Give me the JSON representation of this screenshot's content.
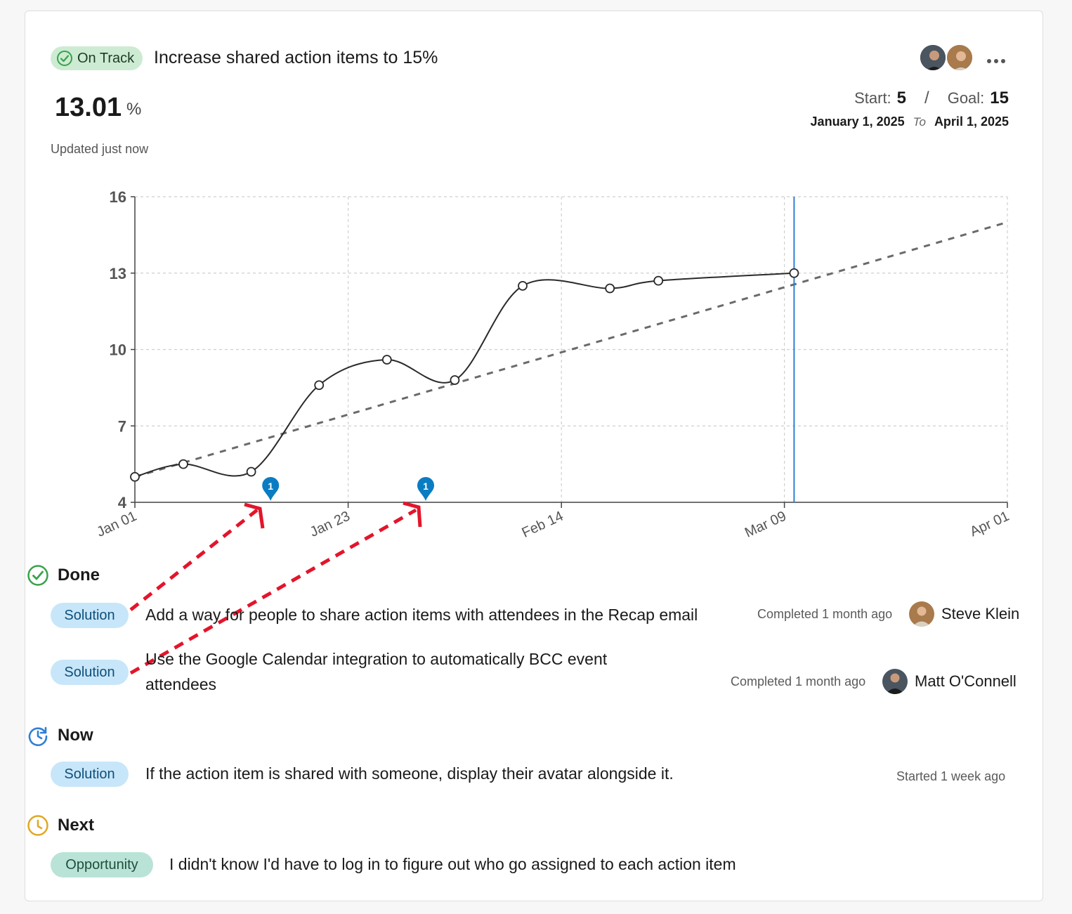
{
  "header": {
    "status_label": "On Track",
    "status_icon": "check-circle-icon",
    "title": "Increase shared action items to 15%",
    "value": "13.01",
    "unit": "%",
    "updated": "Updated just now",
    "start_label": "Start:",
    "start_value": "5",
    "separator": "/",
    "goal_label": "Goal:",
    "goal_value": "15",
    "start_date": "January 1, 2025",
    "to_label": "To",
    "end_date": "April 1, 2025",
    "more_icon": "ellipsis-icon"
  },
  "chart_data": {
    "type": "line",
    "ylim": [
      4,
      16
    ],
    "yticks": [
      "4",
      "7",
      "10",
      "13",
      "16"
    ],
    "xticks": [
      "Jan 01",
      "Jan 23",
      "Feb 14",
      "Mar 09",
      "Apr 01"
    ],
    "grid": true,
    "series": [
      {
        "style": "solid",
        "points": [
          {
            "x": "2025-01-01",
            "y": 5.0
          },
          {
            "x": "2025-01-06",
            "y": 5.5
          },
          {
            "x": "2025-01-13",
            "y": 5.2
          },
          {
            "x": "2025-01-20",
            "y": 8.6
          },
          {
            "x": "2025-01-27",
            "y": 9.6
          },
          {
            "x": "2025-02-03",
            "y": 8.8
          },
          {
            "x": "2025-02-10",
            "y": 12.5
          },
          {
            "x": "2025-02-19",
            "y": 12.4
          },
          {
            "x": "2025-02-24",
            "y": 12.7
          },
          {
            "x": "2025-03-10",
            "y": 13.0
          }
        ]
      },
      {
        "style": "dashed",
        "points": [
          {
            "x": "2025-01-01",
            "y": 5.0
          },
          {
            "x": "2025-04-01",
            "y": 15.0
          }
        ]
      }
    ],
    "today_marker": {
      "x": "2025-03-10",
      "color": "#2f7fd6"
    },
    "pins": [
      {
        "x": "2025-01-15",
        "label": "1"
      },
      {
        "x": "2025-01-31",
        "label": "1"
      }
    ]
  },
  "sections": {
    "done": {
      "label": "Done",
      "icon": "check-circle-icon",
      "items": [
        {
          "tag": "Solution",
          "text": "Add a way for people to share action items with attendees in the Recap email",
          "meta": "Completed 1 month ago",
          "person": "Steve Klein"
        },
        {
          "tag": "Solution",
          "text_line1": "Use the Google Calendar integration to automatically BCC event",
          "text_line2": "attendees",
          "meta": "Completed 1 month ago",
          "person": "Matt O'Connell"
        }
      ]
    },
    "now": {
      "label": "Now",
      "icon": "refresh-clock-icon",
      "items": [
        {
          "tag": "Solution",
          "text": "If the action item is shared with someone, display their avatar alongside it.",
          "meta": "Started 1 week ago"
        }
      ]
    },
    "next": {
      "label": "Next",
      "icon": "clock-icon",
      "items": [
        {
          "tag": "Opportunity",
          "text": "I didn't know I'd have to log in to figure out who go assigned to each action item"
        }
      ]
    }
  },
  "colors": {
    "on_track_bg": "#cdebd2",
    "done_icon": "#3aa14b",
    "now_icon": "#2f7fd6",
    "next_icon": "#e0a823",
    "pin": "#0a7cc2",
    "annotation": "#e3152b"
  }
}
